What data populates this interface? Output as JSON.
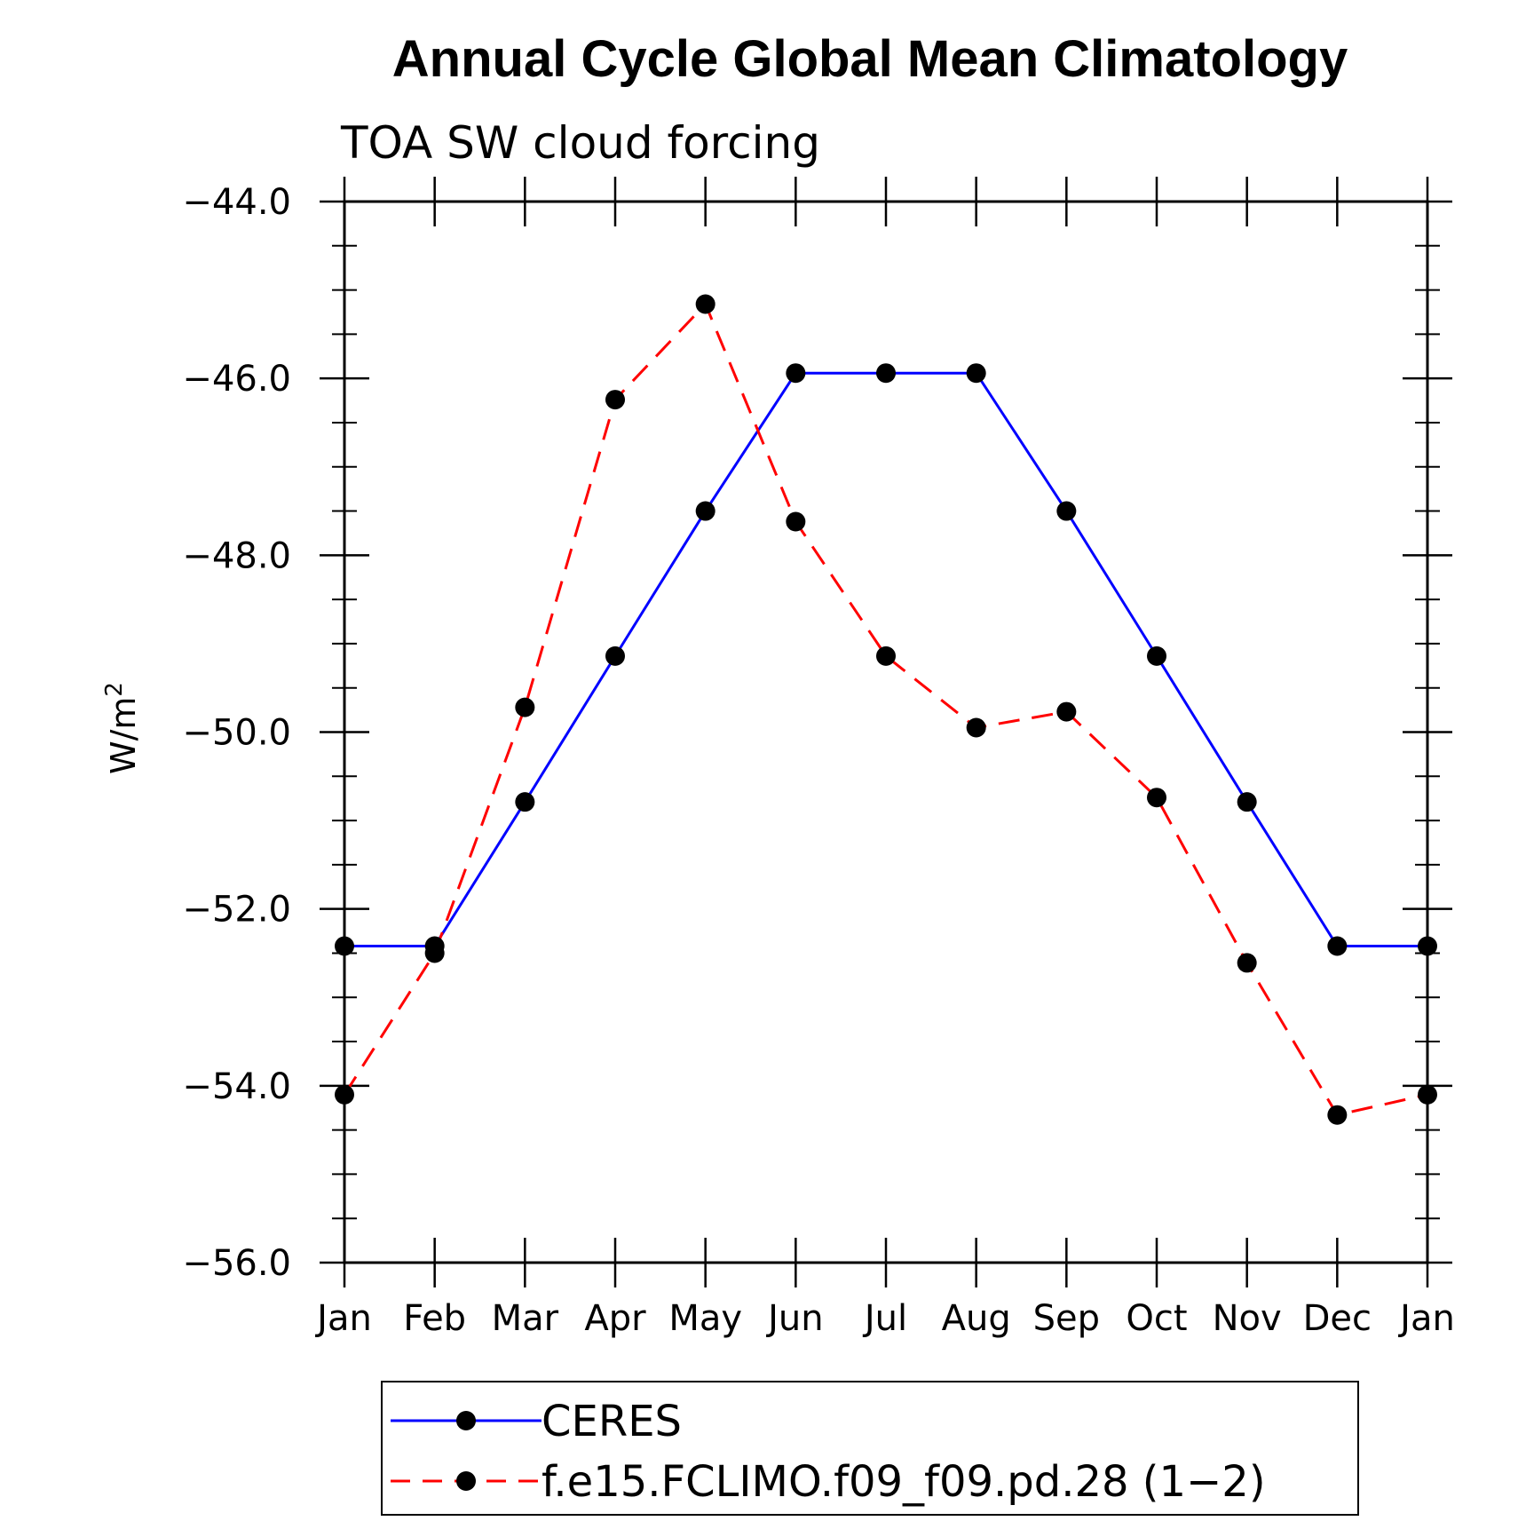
{
  "chart_data": {
    "type": "line",
    "title": "Annual Cycle Global Mean Climatology",
    "subtitle": "TOA SW cloud forcing",
    "ylabel_base": "W/m",
    "ylabel_sup": "2",
    "xlabel": "",
    "categories": [
      "Jan",
      "Feb",
      "Mar",
      "Apr",
      "May",
      "Jun",
      "Jul",
      "Aug",
      "Sep",
      "Oct",
      "Nov",
      "Dec",
      "Jan"
    ],
    "yticks": [
      "−44.0",
      "−46.0",
      "−48.0",
      "−50.0",
      "−52.0",
      "−54.0",
      "−56.0"
    ],
    "ytick_values": [
      -44,
      -46,
      -48,
      -50,
      -52,
      -54,
      -56
    ],
    "ylim": [
      -56,
      -44
    ],
    "grid": false,
    "legend_position": "bottom",
    "series": [
      {
        "name": "CERES",
        "color": "#0000ff",
        "dash": "solid",
        "values": [
          -52.42,
          -52.42,
          -50.79,
          -49.14,
          -47.5,
          -45.94,
          -45.94,
          -45.94,
          -47.5,
          -49.14,
          -50.79,
          -52.42,
          -52.42
        ]
      },
      {
        "name": "f.e15.FCLIMO.f09_f09.pd.28 (1−2)",
        "color": "#ff0000",
        "dash": "dashed",
        "values": [
          -54.1,
          -52.5,
          -49.72,
          -46.24,
          -45.16,
          -47.62,
          -49.14,
          -49.95,
          -49.77,
          -50.74,
          -52.61,
          -54.33,
          -54.1
        ]
      }
    ]
  }
}
